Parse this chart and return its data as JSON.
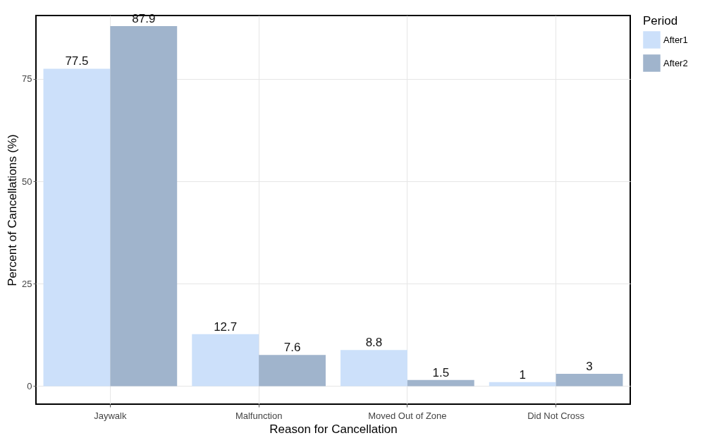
{
  "chart_data": {
    "type": "bar",
    "xlabel": "Reason for Cancellation",
    "ylabel": "Percent of Cancellations (%)",
    "legend_title": "Period",
    "categories": [
      "Jaywalk",
      "Malfunction",
      "Moved Out of Zone",
      "Did Not Cross"
    ],
    "series": [
      {
        "name": "After1",
        "color": "#cce0fa",
        "values": [
          77.5,
          12.7,
          8.8,
          1
        ]
      },
      {
        "name": "After2",
        "color": "#a0b4cc",
        "values": [
          87.9,
          7.6,
          1.5,
          3
        ]
      }
    ],
    "ylim": [
      -4.4,
      90.5
    ],
    "yticks": [
      0,
      25,
      50,
      75
    ],
    "grid": true,
    "legend": "right",
    "data_labels": true
  }
}
